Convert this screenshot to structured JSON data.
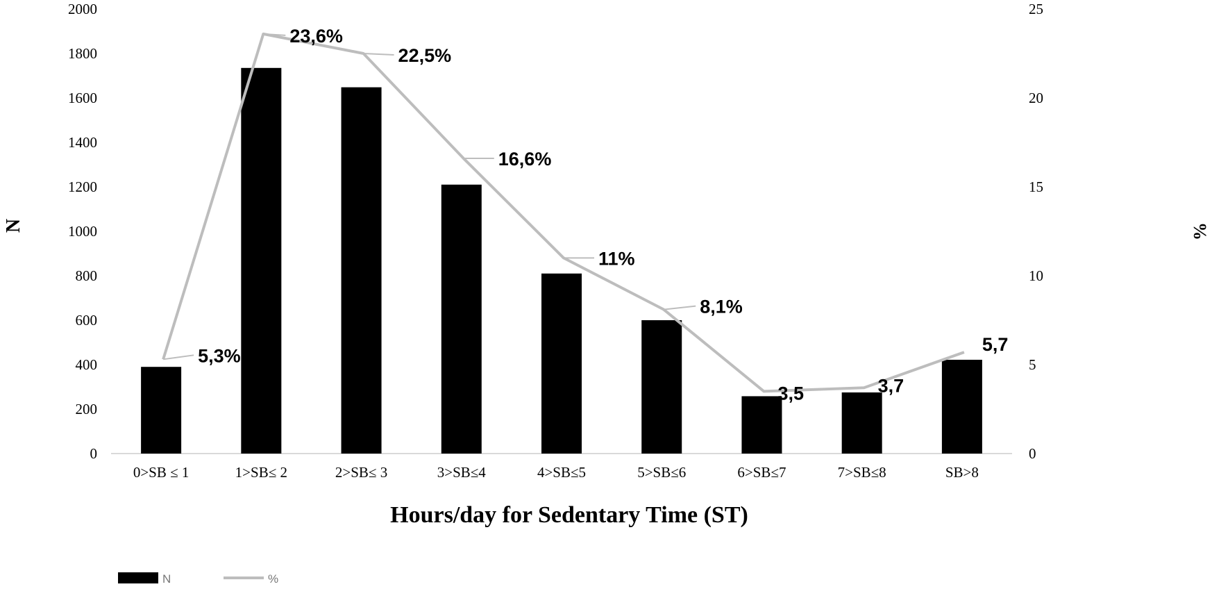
{
  "chart_data": {
    "type": "bar",
    "title": "",
    "xlabel": "Hours/day for Sedentary Time (ST)",
    "ylabel": "N",
    "y2label": "%",
    "ylim": [
      0,
      2000
    ],
    "y2lim": [
      0,
      25
    ],
    "yticks": [
      "0",
      "200",
      "400",
      "600",
      "800",
      "1000",
      "1200",
      "1400",
      "1600",
      "1800",
      "2000"
    ],
    "y2ticks": [
      "0",
      "5",
      "10",
      "15",
      "20",
      "25"
    ],
    "categories": [
      "0>SB ≤ 1",
      "1>SB≤ 2",
      "2>SB≤ 3",
      "3>SB≤4",
      "4>SB≤5",
      "5>SB≤6",
      "6>SB≤7",
      "7>SB≤8",
      "SB>8"
    ],
    "series": [
      {
        "name": "N",
        "type": "bar",
        "axis": "left",
        "color": "#000000",
        "values": [
          390,
          1735,
          1648,
          1210,
          810,
          600,
          258,
          275,
          422
        ]
      },
      {
        "name": "%",
        "type": "line",
        "axis": "right",
        "color": "#bdbdbd",
        "values": [
          5.3,
          23.6,
          22.5,
          16.6,
          11,
          8.1,
          3.5,
          3.7,
          5.7
        ],
        "labels": [
          "5,3%",
          "23,6%",
          "22,5%",
          "16,6%",
          "11%",
          "8,1%",
          "3,5",
          "3,7",
          "5,7"
        ]
      }
    ],
    "grid": false,
    "legend": "bottom-left"
  }
}
